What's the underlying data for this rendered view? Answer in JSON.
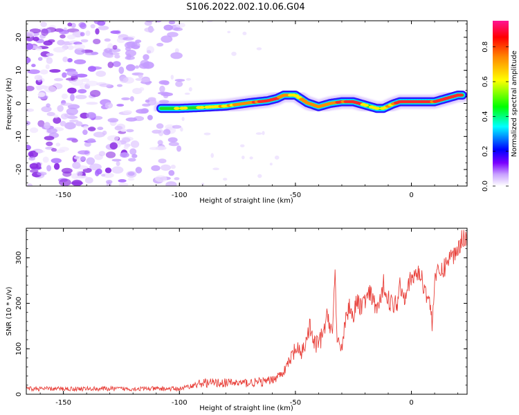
{
  "title": "S106.2022.002.10.06.G04",
  "chart_data": [
    {
      "type": "heatmap",
      "name": "spectrogram",
      "xlabel": "Height of straight line (km)",
      "ylabel": "Frequency (Hz)",
      "xlim": [
        -166,
        24
      ],
      "ylim": [
        -25,
        25
      ],
      "xticks": [
        -150,
        -100,
        -50,
        0
      ],
      "yticks": [
        -20,
        -10,
        0,
        10,
        20
      ],
      "colorbar": {
        "label": "Normalized spectral amplitude",
        "range": [
          0.0,
          0.95
        ],
        "ticks": [
          0.0,
          0.2,
          0.4,
          0.6,
          0.8
        ],
        "colors": [
          "#ffffff",
          "#7b00ff",
          "#0000ff",
          "#00ffff",
          "#00ff00",
          "#ffff00",
          "#ff8800",
          "#ff0000",
          "#ff1493"
        ]
      },
      "noise_region": {
        "x_from": -166,
        "x_to": -105,
        "amplitude_approx": 0.15
      },
      "ridge": {
        "x": [
          -108,
          -100,
          -90,
          -80,
          -70,
          -62,
          -58,
          -55,
          -50,
          -45,
          -40,
          -35,
          -30,
          -25,
          -20,
          -15,
          -12,
          -8,
          -5,
          0,
          5,
          10,
          15,
          20,
          22
        ],
        "frequency": [
          -1.5,
          -1.5,
          -1.2,
          -0.8,
          0.2,
          0.8,
          1.5,
          2.5,
          2.5,
          0.2,
          -1.0,
          0.0,
          0.5,
          0.5,
          -0.5,
          -1.5,
          -1.5,
          -0.2,
          0.5,
          0.5,
          0.5,
          0.5,
          1.5,
          2.5,
          2.5
        ],
        "amplitude": [
          0.45,
          0.55,
          0.6,
          0.7,
          0.8,
          0.85,
          0.9,
          0.75,
          0.7,
          0.7,
          0.75,
          0.8,
          0.85,
          0.9,
          0.7,
          0.6,
          0.65,
          0.8,
          0.85,
          0.9,
          0.9,
          0.85,
          0.85,
          0.9,
          0.9
        ]
      }
    },
    {
      "type": "line",
      "name": "snr",
      "xlabel": "Height of straight line (km)",
      "ylabel": "SNR (10 * v/v)",
      "xlim": [
        -166,
        24
      ],
      "ylim": [
        0,
        365
      ],
      "xticks": [
        -150,
        -100,
        -50,
        0
      ],
      "yticks": [
        0,
        100,
        200,
        300
      ],
      "color": "#e8403a",
      "series": [
        {
          "name": "SNR",
          "x": [
            -166,
            -150,
            -130,
            -110,
            -100,
            -95,
            -90,
            -80,
            -70,
            -62,
            -58,
            -55,
            -52,
            -50,
            -48,
            -45,
            -44,
            -42,
            -40,
            -38,
            -36,
            -34,
            -33,
            -32,
            -30,
            -28,
            -26,
            -25,
            -24,
            -22,
            -20,
            -18,
            -15,
            -13,
            -12,
            -10,
            -8,
            -6,
            -5,
            -4,
            -3,
            -2,
            0,
            3,
            5,
            8,
            9,
            10,
            12,
            14,
            16,
            18,
            20,
            22,
            24
          ],
          "y": [
            12,
            12,
            12,
            12,
            12,
            18,
            25,
            25,
            25,
            28,
            38,
            50,
            75,
            100,
            85,
            120,
            150,
            110,
            110,
            135,
            175,
            130,
            280,
            100,
            110,
            175,
            200,
            160,
            200,
            195,
            205,
            220,
            190,
            205,
            245,
            210,
            195,
            205,
            245,
            225,
            215,
            240,
            250,
            270,
            245,
            200,
            150,
            260,
            265,
            275,
            300,
            305,
            320,
            345,
            345
          ]
        }
      ]
    }
  ]
}
